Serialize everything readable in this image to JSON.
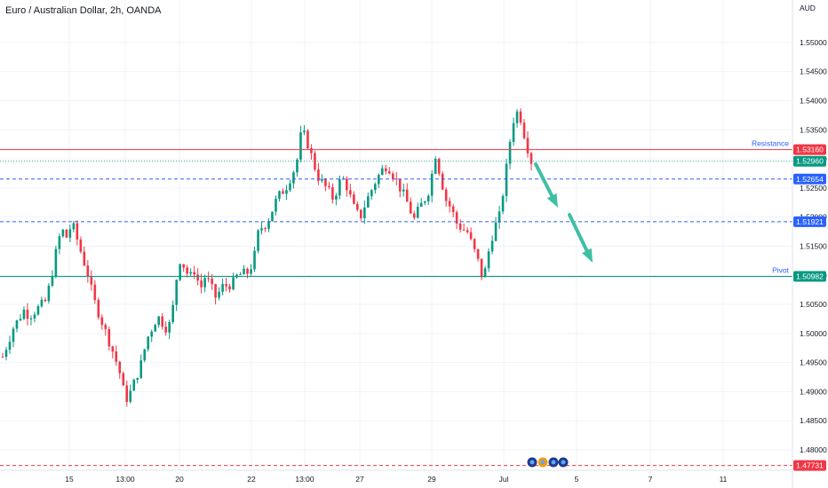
{
  "header": {
    "title": "Euro / Australian Dollar, 2h, OANDA"
  },
  "chart_data": {
    "type": "candlestick",
    "currency": "AUD",
    "ylim": [
      1.4765,
      1.5573
    ],
    "y_ticks": [
      "1.55000",
      "1.54500",
      "1.54000",
      "1.53500",
      "1.53000",
      "1.52500",
      "1.52000",
      "1.51500",
      "1.51000",
      "1.50500",
      "1.50000",
      "1.49500",
      "1.49000",
      "1.48500",
      "1.48000"
    ],
    "x_ticks": [
      "15",
      "13:00",
      "20",
      "22",
      "13:00",
      "27",
      "29",
      "Jul",
      "5",
      "7",
      "11"
    ],
    "levels": [
      {
        "value": 1.5316,
        "label": "1.53160",
        "name": "Resistance",
        "color": "#f23645",
        "style": "solid",
        "badge_bg": "#f23645"
      },
      {
        "value": 1.5296,
        "label": "1.52960",
        "name": "",
        "color": "#26a69a",
        "style": "dotted",
        "badge_bg": "#089981"
      },
      {
        "value": 1.52654,
        "label": "1.52654",
        "name": "",
        "color": "#2962ff",
        "style": "dashed",
        "badge_bg": "#2962ff"
      },
      {
        "value": 1.51921,
        "label": "1.51921",
        "name": "",
        "color": "#2962ff",
        "style": "dashed",
        "badge_bg": "#2962ff"
      },
      {
        "value": 1.50982,
        "label": "1.50982",
        "name": "Pivot",
        "color": "#089981",
        "style": "solid",
        "badge_bg": "#089981"
      },
      {
        "value": 1.47731,
        "label": "1.47731",
        "name": "",
        "color": "#f23645",
        "style": "dashed",
        "badge_bg": "#f23645"
      }
    ],
    "close_path": [
      [
        0,
        1.496
      ],
      [
        2,
        1.501
      ],
      [
        4,
        1.504
      ],
      [
        5,
        1.503
      ],
      [
        8,
        1.5055
      ],
      [
        9,
        1.509
      ],
      [
        10,
        1.514
      ],
      [
        11,
        1.518
      ],
      [
        12,
        1.5165
      ],
      [
        13,
        1.519
      ],
      [
        15,
        1.513
      ],
      [
        16,
        1.51
      ],
      [
        17,
        1.506
      ],
      [
        19,
        1.501
      ],
      [
        21,
        1.496
      ],
      [
        22,
        1.493
      ],
      [
        23,
        1.4885
      ],
      [
        24,
        1.49
      ],
      [
        26,
        1.495
      ],
      [
        27,
        1.499
      ],
      [
        29,
        1.503
      ],
      [
        31,
        1.5005
      ],
      [
        32,
        1.505
      ],
      [
        33,
        1.513
      ],
      [
        34,
        1.5115
      ],
      [
        35,
        1.5095
      ],
      [
        36,
        1.511
      ],
      [
        37,
        1.5075
      ],
      [
        38,
        1.51
      ],
      [
        40,
        1.506
      ],
      [
        41,
        1.508
      ],
      [
        43,
        1.5085
      ],
      [
        44,
        1.51
      ],
      [
        46,
        1.5105
      ],
      [
        47,
        1.5125
      ],
      [
        48,
        1.518
      ],
      [
        49,
        1.5185
      ],
      [
        50,
        1.52
      ],
      [
        51,
        1.5225
      ],
      [
        52,
        1.524
      ],
      [
        53,
        1.525
      ],
      [
        54,
        1.527
      ],
      [
        55,
        1.529
      ],
      [
        56,
        1.535
      ],
      [
        57,
        1.533
      ],
      [
        58,
        1.53
      ],
      [
        59,
        1.527
      ],
      [
        61,
        1.5245
      ],
      [
        62,
        1.523
      ],
      [
        63,
        1.526
      ],
      [
        64,
        1.5265
      ],
      [
        66,
        1.521
      ],
      [
        67,
        1.52
      ],
      [
        68,
        1.5225
      ],
      [
        70,
        1.5265
      ],
      [
        71,
        1.528
      ],
      [
        72,
        1.529
      ],
      [
        73,
        1.5275
      ],
      [
        75,
        1.524
      ],
      [
        76,
        1.522
      ],
      [
        77,
        1.5195
      ],
      [
        78,
        1.5215
      ],
      [
        79,
        1.523
      ],
      [
        80,
        1.525
      ],
      [
        81,
        1.531
      ],
      [
        82,
        1.527
      ],
      [
        83,
        1.523
      ],
      [
        84,
        1.5215
      ],
      [
        85,
        1.519
      ],
      [
        86,
        1.518
      ],
      [
        87,
        1.5175
      ],
      [
        88,
        1.515
      ],
      [
        89,
        1.5125
      ],
      [
        90,
        1.509
      ],
      [
        91,
        1.514
      ],
      [
        92,
        1.518
      ],
      [
        93,
        1.52
      ],
      [
        94,
        1.526
      ],
      [
        95,
        1.533
      ],
      [
        96,
        1.5385
      ],
      [
        97,
        1.537
      ],
      [
        98,
        1.533
      ],
      [
        99,
        1.5296
      ]
    ]
  }
}
